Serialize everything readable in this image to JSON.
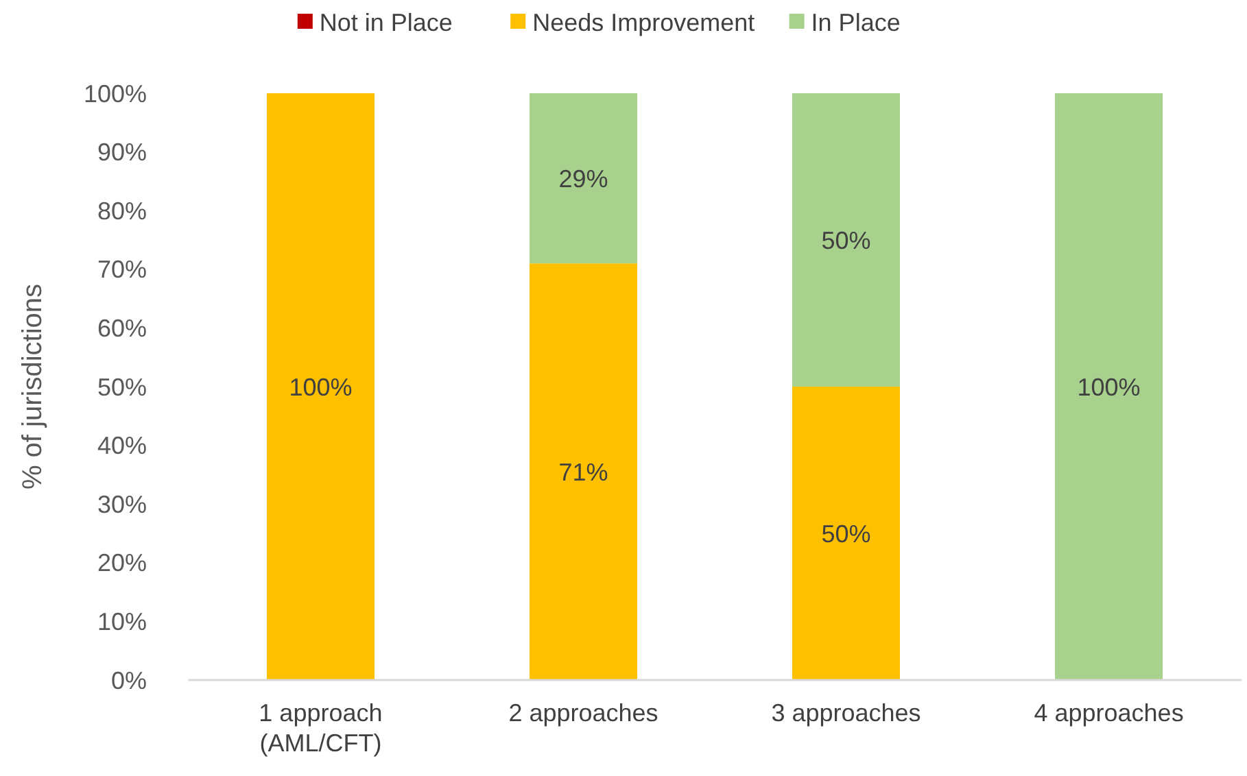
{
  "chart_data": {
    "type": "bar",
    "stacked": true,
    "ylabel": "% of jurisdictions",
    "legend": "top",
    "categories": [
      "1 approach\n(AML/CFT)",
      "2 approaches",
      "3 approaches",
      "4 approaches"
    ],
    "series": [
      {
        "name": "Not in Place",
        "color": "#c00000",
        "values": [
          0,
          0,
          0,
          0
        ],
        "value_labels": [
          null,
          null,
          null,
          null
        ]
      },
      {
        "name": "Needs Improvement",
        "color": "#ffc000",
        "values": [
          100,
          71,
          50,
          0
        ],
        "value_labels": [
          "100%",
          "71%",
          "50%",
          null
        ]
      },
      {
        "name": "In Place",
        "color": "#a9d18e",
        "values": [
          0,
          29,
          50,
          100
        ],
        "value_labels": [
          null,
          "29%",
          "50%",
          "100%"
        ]
      }
    ],
    "ylim": [
      0,
      100
    ],
    "yticks": [
      {
        "value": 0,
        "label": "0%"
      },
      {
        "value": 10,
        "label": "10%"
      },
      {
        "value": 20,
        "label": "20%"
      },
      {
        "value": 30,
        "label": "30%"
      },
      {
        "value": 40,
        "label": "40%"
      },
      {
        "value": 50,
        "label": "50%"
      },
      {
        "value": 60,
        "label": "60%"
      },
      {
        "value": 70,
        "label": "70%"
      },
      {
        "value": 80,
        "label": "80%"
      },
      {
        "value": 90,
        "label": "90%"
      },
      {
        "value": 100,
        "label": "100%"
      }
    ],
    "grid": false
  }
}
